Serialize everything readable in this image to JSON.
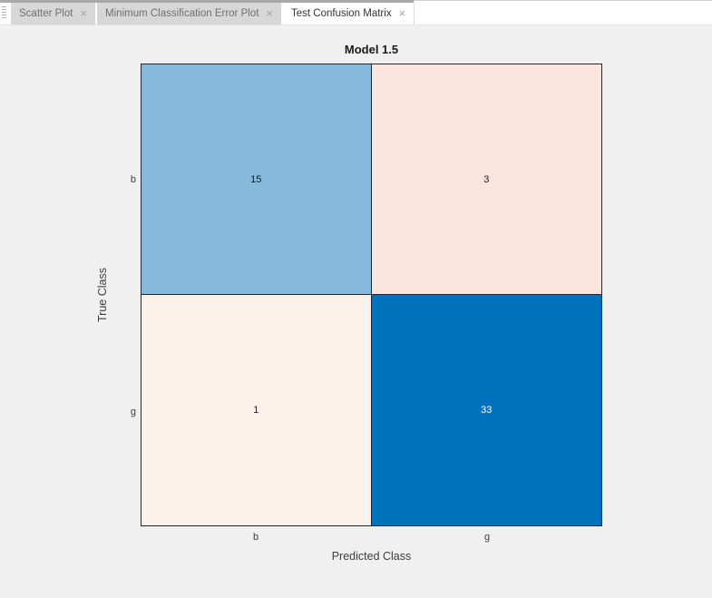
{
  "tab_bar": {
    "tabs": [
      {
        "label": "Scatter Plot",
        "close_glyph": "×",
        "active": false
      },
      {
        "label": "Minimum Classification Error Plot",
        "close_glyph": "×",
        "active": false
      },
      {
        "label": "Test Confusion Matrix",
        "close_glyph": "×",
        "active": true
      }
    ]
  },
  "chart_data": {
    "type": "heatmap",
    "title": "Model 1.5",
    "xlabel": "Predicted Class",
    "ylabel": "True Class",
    "x_categories": [
      "b",
      "g"
    ],
    "y_categories": [
      "b",
      "g"
    ],
    "matrix": [
      [
        15,
        3
      ],
      [
        1,
        33
      ]
    ],
    "cell_colors": [
      [
        "#85BADC",
        "#FAE5DE"
      ],
      [
        "#FCF0EB",
        "#0072BD"
      ]
    ],
    "cell_text_colors": [
      [
        "#1A1A1A",
        "#1A1A1A"
      ],
      [
        "#1A1A1A",
        "#FFFFFF"
      ]
    ],
    "colors": {
      "diagonal_max": "#0072BD",
      "figure_background": "#F0F0F0"
    },
    "legend": "off",
    "grid": "off"
  }
}
